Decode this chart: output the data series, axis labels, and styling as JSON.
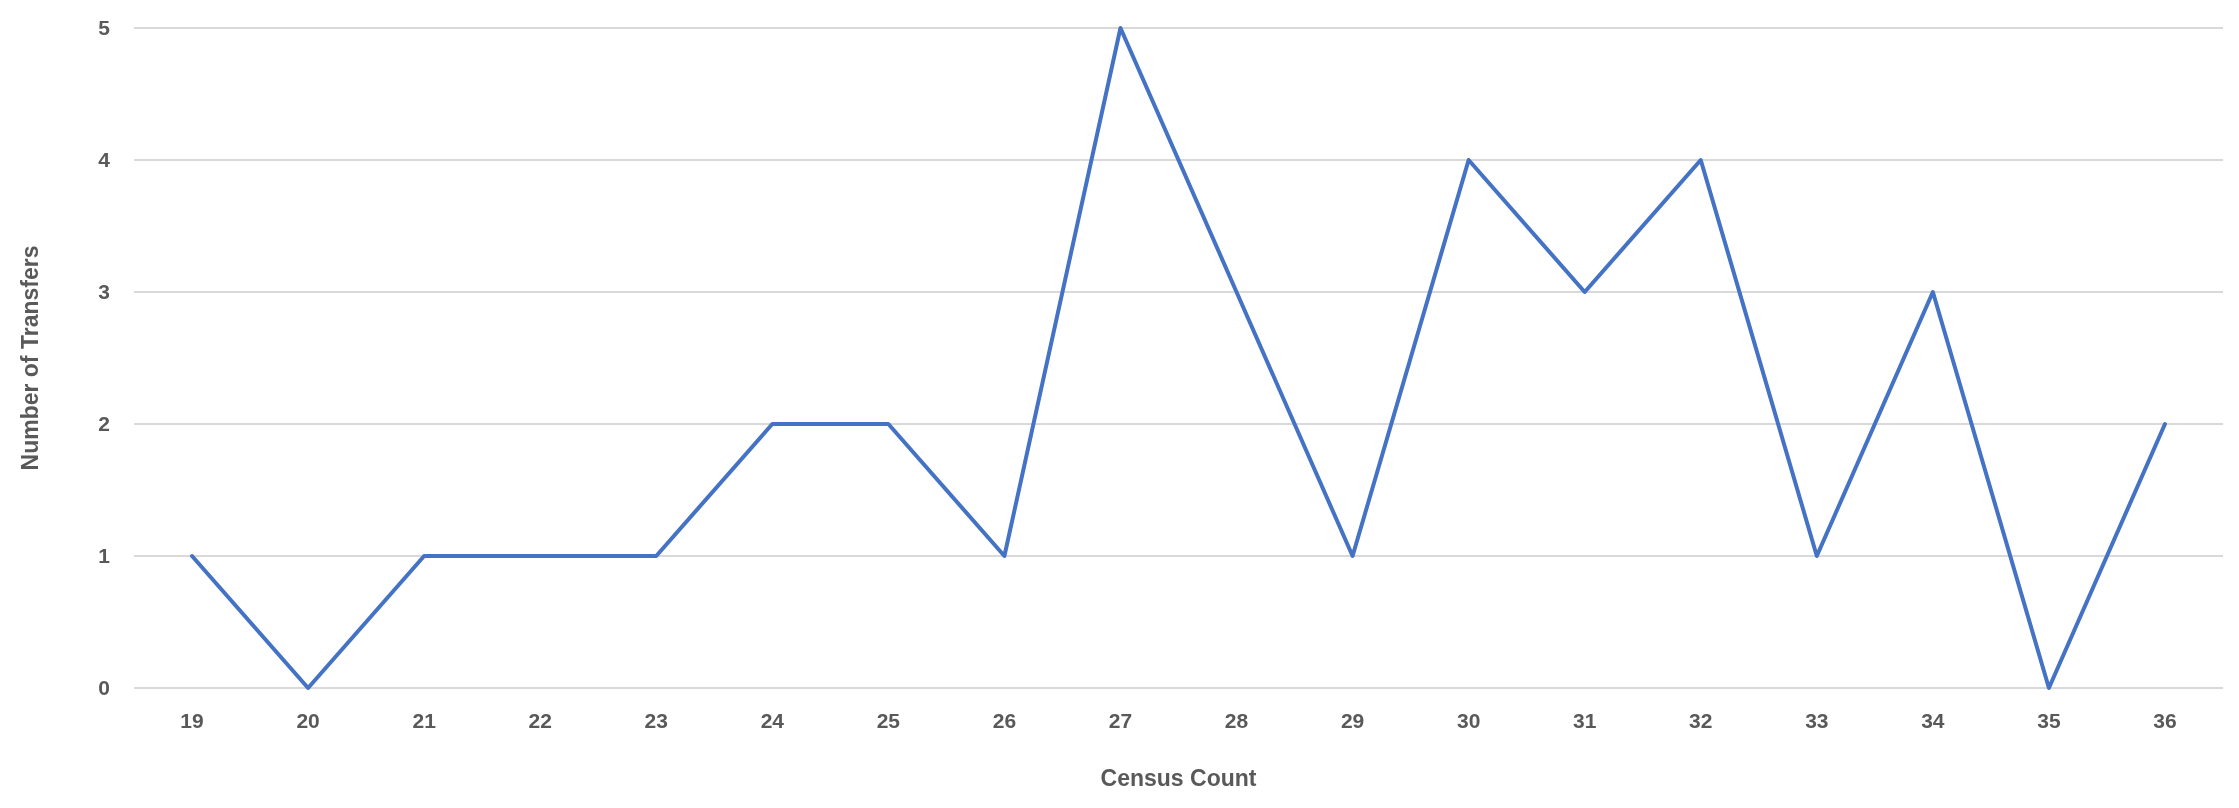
{
  "chart_data": {
    "type": "line",
    "xlabel": "Census Count",
    "ylabel": "Number of Transfers",
    "categories": [
      "19",
      "20",
      "21",
      "22",
      "23",
      "24",
      "25",
      "26",
      "27",
      "28",
      "29",
      "30",
      "31",
      "32",
      "33",
      "34",
      "35",
      "36"
    ],
    "series": [
      {
        "color": "#4472c4",
        "values": [
          1,
          0,
          1,
          1,
          1,
          2,
          2,
          1,
          5,
          3,
          1,
          4,
          3,
          4,
          1,
          3,
          0,
          2
        ]
      }
    ],
    "ylim": [
      0,
      5
    ],
    "yticks": [
      0,
      1,
      2,
      3,
      4,
      5
    ],
    "grid": "y",
    "marker": "none",
    "line_style": "solid"
  }
}
